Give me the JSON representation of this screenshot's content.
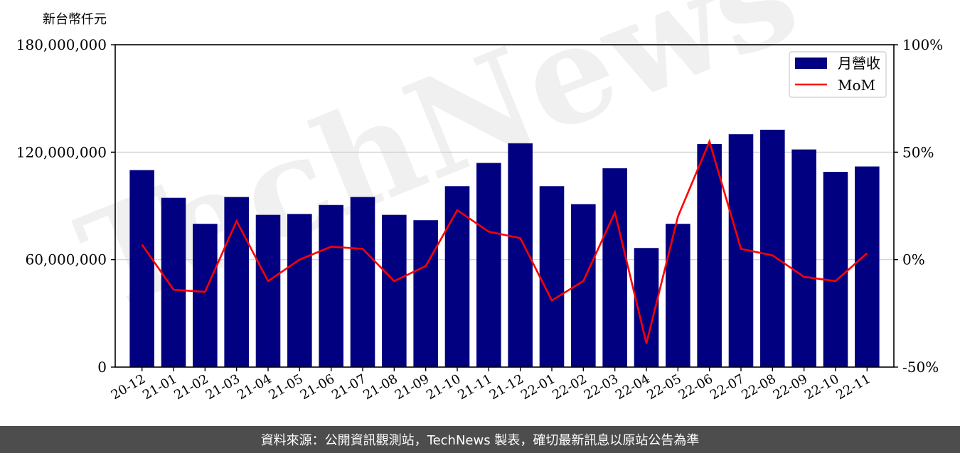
{
  "chart_data": {
    "type": "bar",
    "unit_label": "新台幣仟元",
    "categories": [
      "20-12",
      "21-01",
      "21-02",
      "21-03",
      "21-04",
      "21-05",
      "21-06",
      "21-07",
      "21-08",
      "21-09",
      "21-10",
      "21-11",
      "21-12",
      "22-01",
      "22-02",
      "22-03",
      "22-04",
      "22-05",
      "22-06",
      "22-07",
      "22-08",
      "22-09",
      "22-10",
      "22-11"
    ],
    "series": [
      {
        "name": "月營收",
        "type": "bar",
        "axis": "left",
        "color": "#000080",
        "values": [
          110000000,
          94500000,
          80000000,
          95000000,
          85000000,
          85500000,
          90500000,
          95000000,
          85000000,
          82000000,
          101000000,
          114000000,
          125000000,
          101000000,
          91000000,
          111000000,
          66500000,
          80000000,
          124500000,
          130000000,
          132500000,
          121500000,
          109000000,
          112000000
        ]
      },
      {
        "name": "MoM",
        "type": "line",
        "axis": "right",
        "color": "#ff0000",
        "values": [
          7,
          -14,
          -15,
          18,
          -10,
          0,
          6,
          5,
          -10,
          -3,
          23,
          13,
          10,
          -19,
          -10,
          22,
          -39,
          20,
          55,
          5,
          2,
          -8,
          -10,
          3
        ]
      }
    ],
    "y_left": {
      "ticks": [
        "0",
        "60,000,000",
        "120,000,000",
        "180,000,000"
      ],
      "ylim": [
        0,
        180000000
      ]
    },
    "y_right": {
      "ticks": [
        "-50%",
        "0%",
        "50%",
        "100%"
      ],
      "ylim": [
        -50,
        100
      ]
    },
    "grid": true,
    "legend_position": "top-right",
    "watermark": "TechNews"
  },
  "footer": {
    "text": "資料來源：公開資訊觀測站，TechNews 製表，確切最新訊息以原站公告為準"
  }
}
